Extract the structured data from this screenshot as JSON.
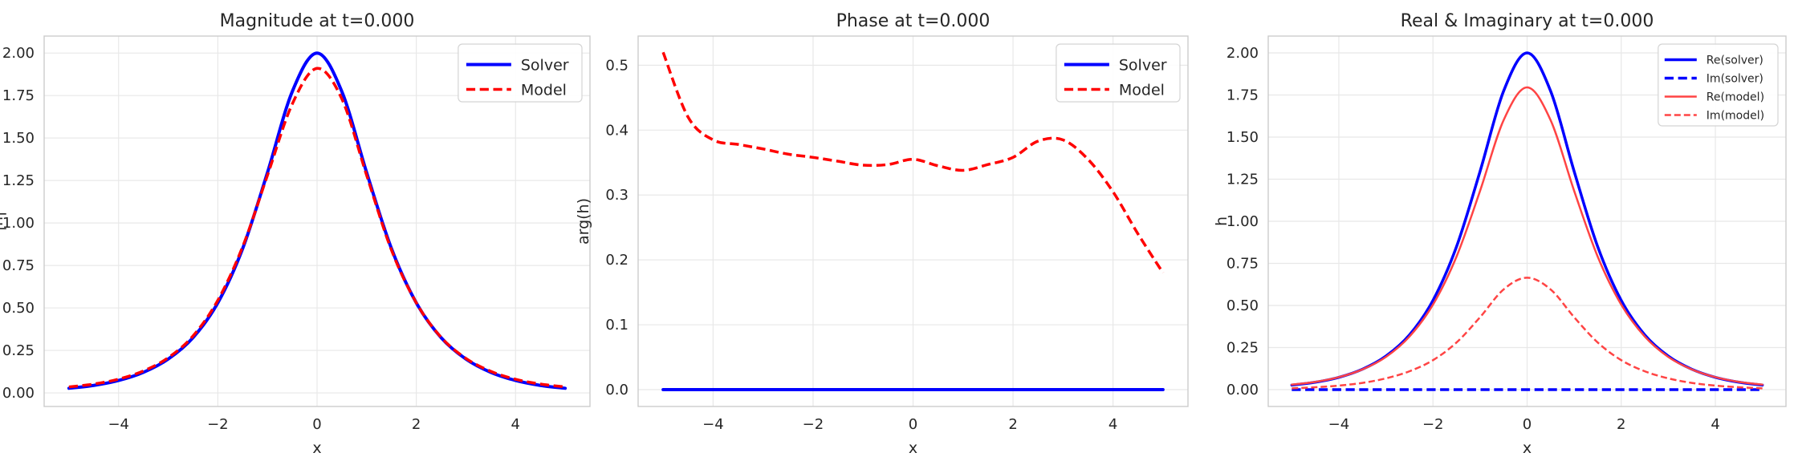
{
  "chart_data": [
    {
      "type": "line",
      "title": "Magnitude at t=0.000",
      "xlabel": "x",
      "ylabel": "|h|",
      "xlim": [
        -5.5,
        5.5
      ],
      "ylim": [
        -0.08,
        2.1
      ],
      "xticks": [
        -4,
        -2,
        0,
        2,
        4
      ],
      "xtick_labels": [
        "−4",
        "−2",
        "0",
        "2",
        "4"
      ],
      "yticks": [
        0,
        0.25,
        0.5,
        0.75,
        1.0,
        1.25,
        1.5,
        1.75,
        2.0
      ],
      "ytick_labels": [
        "0.00",
        "0.25",
        "0.50",
        "0.75",
        "1.00",
        "1.25",
        "1.50",
        "1.75",
        "2.00"
      ],
      "grid": true,
      "legend": "top-right",
      "legend_font": "large",
      "x": [
        -5,
        -4.5,
        -4,
        -3.5,
        -3,
        -2.5,
        -2,
        -1.5,
        -1,
        -0.5,
        0,
        0.5,
        1,
        1.5,
        2,
        2.5,
        3,
        3.5,
        4,
        4.5,
        5
      ],
      "series": [
        {
          "name": "Solver",
          "color": "#0000ff",
          "style": "solid",
          "width": 4,
          "values": [
            0.027,
            0.044,
            0.073,
            0.121,
            0.199,
            0.325,
            0.53,
            0.849,
            1.296,
            1.773,
            2.0,
            1.773,
            1.296,
            0.849,
            0.53,
            0.325,
            0.199,
            0.121,
            0.073,
            0.044,
            0.027
          ]
        },
        {
          "name": "Model",
          "color": "#ff0000",
          "style": "dashed",
          "width": 3.5,
          "values": [
            0.035,
            0.052,
            0.081,
            0.129,
            0.207,
            0.335,
            0.545,
            0.86,
            1.28,
            1.7,
            1.91,
            1.73,
            1.28,
            0.84,
            0.53,
            0.327,
            0.203,
            0.127,
            0.08,
            0.052,
            0.035
          ]
        }
      ]
    },
    {
      "type": "line",
      "title": "Phase at t=0.000",
      "xlabel": "x",
      "ylabel": "arg(h)",
      "xlim": [
        -5.5,
        5.5
      ],
      "ylim": [
        -0.026,
        0.545
      ],
      "xticks": [
        -4,
        -2,
        0,
        2,
        4
      ],
      "xtick_labels": [
        "−4",
        "−2",
        "0",
        "2",
        "4"
      ],
      "yticks": [
        0,
        0.1,
        0.2,
        0.3,
        0.4,
        0.5
      ],
      "ytick_labels": [
        "0.0",
        "0.1",
        "0.2",
        "0.3",
        "0.4",
        "0.5"
      ],
      "grid": true,
      "legend": "top-right",
      "legend_font": "large",
      "x": [
        -5,
        -4.5,
        -4,
        -3.5,
        -3,
        -2.5,
        -2,
        -1.5,
        -1,
        -0.5,
        0,
        0.5,
        1,
        1.5,
        2,
        2.5,
        3,
        3.5,
        4,
        4.5,
        5
      ],
      "series": [
        {
          "name": "Solver",
          "color": "#0000ff",
          "style": "solid",
          "width": 4,
          "values": [
            0,
            0,
            0,
            0,
            0,
            0,
            0,
            0,
            0,
            0,
            0,
            0,
            0,
            0,
            0,
            0,
            0,
            0,
            0,
            0,
            0
          ]
        },
        {
          "name": "Model",
          "color": "#ff0000",
          "style": "dashed",
          "width": 3.5,
          "values": [
            0.52,
            0.42,
            0.385,
            0.378,
            0.371,
            0.363,
            0.358,
            0.352,
            0.346,
            0.347,
            0.355,
            0.345,
            0.338,
            0.347,
            0.358,
            0.383,
            0.385,
            0.355,
            0.305,
            0.24,
            0.18
          ]
        }
      ]
    },
    {
      "type": "line",
      "title": "Real & Imaginary at t=0.000",
      "xlabel": "x",
      "ylabel": "h",
      "xlim": [
        -5.5,
        5.5
      ],
      "ylim": [
        -0.1,
        2.1
      ],
      "xticks": [
        -4,
        -2,
        0,
        2,
        4
      ],
      "xtick_labels": [
        "−4",
        "−2",
        "0",
        "2",
        "4"
      ],
      "yticks": [
        0,
        0.25,
        0.5,
        0.75,
        1.0,
        1.25,
        1.5,
        1.75,
        2.0
      ],
      "ytick_labels": [
        "0.00",
        "0.25",
        "0.50",
        "0.75",
        "1.00",
        "1.25",
        "1.50",
        "1.75",
        "2.00"
      ],
      "grid": true,
      "legend": "top-right",
      "legend_font": "small",
      "x": [
        -5,
        -4.5,
        -4,
        -3.5,
        -3,
        -2.5,
        -2,
        -1.5,
        -1,
        -0.5,
        0,
        0.5,
        1,
        1.5,
        2,
        2.5,
        3,
        3.5,
        4,
        4.5,
        5
      ],
      "series": [
        {
          "name": "Re(solver)",
          "color": "#0000ff",
          "style": "solid",
          "width": 3.5,
          "values": [
            0.027,
            0.044,
            0.073,
            0.121,
            0.199,
            0.325,
            0.53,
            0.849,
            1.296,
            1.773,
            2.0,
            1.773,
            1.296,
            0.849,
            0.53,
            0.325,
            0.199,
            0.121,
            0.073,
            0.044,
            0.027
          ]
        },
        {
          "name": "Im(solver)",
          "color": "#0000ff",
          "style": "dashed",
          "width": 3.5,
          "values": [
            0,
            0,
            0,
            0,
            0,
            0,
            0,
            0,
            0,
            0,
            0,
            0,
            0,
            0,
            0,
            0,
            0,
            0,
            0,
            0,
            0
          ]
        },
        {
          "name": "Re(model)",
          "color": "#ff4444",
          "style": "solid",
          "width": 2.5,
          "values": [
            0.03,
            0.046,
            0.074,
            0.12,
            0.194,
            0.315,
            0.505,
            0.79,
            1.18,
            1.6,
            1.795,
            1.6,
            1.18,
            0.79,
            0.505,
            0.315,
            0.194,
            0.12,
            0.074,
            0.046,
            0.03
          ]
        },
        {
          "name": "Im(model)",
          "color": "#ff4444",
          "style": "dashed",
          "width": 2.5,
          "values": [
            0.008,
            0.014,
            0.024,
            0.04,
            0.067,
            0.109,
            0.175,
            0.28,
            0.43,
            0.595,
            0.665,
            0.595,
            0.43,
            0.28,
            0.175,
            0.109,
            0.067,
            0.04,
            0.024,
            0.014,
            0.008
          ]
        }
      ]
    }
  ]
}
